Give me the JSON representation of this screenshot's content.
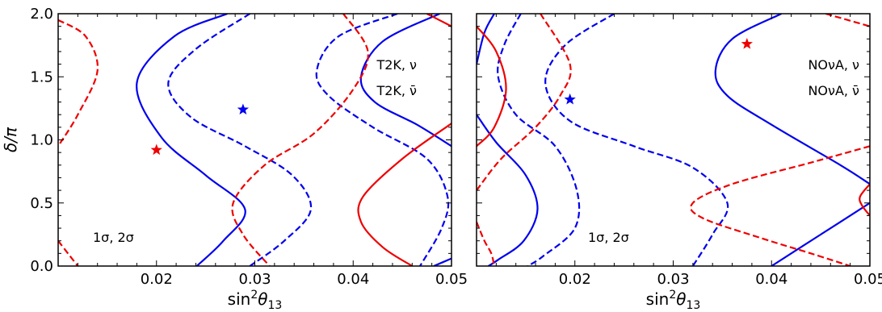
{
  "chart_data": [
    {
      "type": "line",
      "panel": "left",
      "xlabel_base": "sin",
      "xlabel_sup": "2",
      "xlabel_sym": "θ",
      "xlabel_sub": "13",
      "ylabel_sym": "δ/π",
      "xlim": [
        0.01,
        0.05
      ],
      "ylim": [
        0.0,
        2.0
      ],
      "xticks": [
        0.02,
        0.03,
        0.04,
        0.05
      ],
      "xtick_labels": [
        "0.02",
        "0.03",
        "0.04",
        "0.05"
      ],
      "yticks": [
        0.0,
        0.5,
        1.0,
        1.5,
        2.0
      ],
      "ytick_labels": [
        "0.0",
        "0.5",
        "1.0",
        "1.5",
        "2.0"
      ],
      "legend": [
        {
          "label": "T2K, ν",
          "color": "#0000ee"
        },
        {
          "label": "T2K, ν̄",
          "color": "#ee0000"
        }
      ],
      "note": "1σ, 2σ",
      "stars": [
        {
          "x": 0.0288,
          "y": 1.24,
          "color": "#0000ee"
        },
        {
          "x": 0.02,
          "y": 0.92,
          "color": "#ee0000"
        }
      ],
      "series": [
        {
          "color": "#0000ee",
          "dashed": false,
          "points": [
            [
              0.0272,
              2.0
            ],
            [
              0.0218,
              1.82
            ],
            [
              0.018,
              1.45
            ],
            [
              0.0205,
              1.02
            ],
            [
              0.025,
              0.72
            ],
            [
              0.029,
              0.45
            ],
            [
              0.0268,
              0.2
            ],
            [
              0.0241,
              0.0
            ]
          ]
        },
        {
          "color": "#0000ee",
          "dashed": true,
          "points": [
            [
              0.0295,
              2.0
            ],
            [
              0.024,
              1.72
            ],
            [
              0.0212,
              1.45
            ],
            [
              0.0235,
              1.18
            ],
            [
              0.029,
              0.95
            ],
            [
              0.0338,
              0.72
            ],
            [
              0.0357,
              0.45
            ],
            [
              0.033,
              0.2
            ],
            [
              0.0295,
              0.0
            ]
          ]
        },
        {
          "color": "#0000ee",
          "dashed": true,
          "points": [
            [
              0.0445,
              2.0
            ],
            [
              0.0385,
              1.82
            ],
            [
              0.0363,
              1.55
            ],
            [
              0.0375,
              1.35
            ],
            [
              0.042,
              1.1
            ],
            [
              0.0475,
              0.85
            ],
            [
              0.0496,
              0.55
            ],
            [
              0.049,
              0.3
            ],
            [
              0.0468,
              0.0
            ]
          ]
        },
        {
          "color": "#0000ee",
          "dashed": false,
          "points": [
            [
              0.0488,
              2.0
            ],
            [
              0.043,
              1.78
            ],
            [
              0.0408,
              1.5
            ],
            [
              0.0422,
              1.3
            ],
            [
              0.0465,
              1.12
            ],
            [
              0.05,
              0.95
            ]
          ]
        },
        {
          "color": "#0000ee",
          "dashed": false,
          "points": [
            [
              0.0482,
              0.0
            ],
            [
              0.05,
              0.06
            ]
          ]
        },
        {
          "color": "#ee0000",
          "dashed": true,
          "points": [
            [
              0.01,
              1.95
            ],
            [
              0.0128,
              1.82
            ],
            [
              0.014,
              1.55
            ],
            [
              0.012,
              1.2
            ],
            [
              0.01,
              0.95
            ]
          ]
        },
        {
          "color": "#ee0000",
          "dashed": true,
          "points": [
            [
              0.01,
              0.2
            ],
            [
              0.0112,
              0.08
            ],
            [
              0.012,
              0.0
            ]
          ]
        },
        {
          "color": "#ee0000",
          "dashed": true,
          "points": [
            [
              0.039,
              2.0
            ],
            [
              0.0415,
              1.7
            ],
            [
              0.04,
              1.4
            ],
            [
              0.036,
              1.05
            ],
            [
              0.031,
              0.8
            ],
            [
              0.0278,
              0.5
            ],
            [
              0.0288,
              0.25
            ],
            [
              0.0315,
              0.0
            ]
          ]
        },
        {
          "color": "#ee0000",
          "dashed": false,
          "points": [
            [
              0.05,
              1.13
            ],
            [
              0.045,
              0.85
            ],
            [
              0.041,
              0.55
            ],
            [
              0.0408,
              0.35
            ],
            [
              0.043,
              0.15
            ],
            [
              0.046,
              0.0
            ]
          ]
        },
        {
          "color": "#ee0000",
          "dashed": false,
          "points": [
            [
              0.0475,
              2.0
            ],
            [
              0.05,
              1.9
            ]
          ]
        }
      ]
    },
    {
      "type": "line",
      "panel": "right",
      "xlabel_base": "sin",
      "xlabel_sup": "2",
      "xlabel_sym": "θ",
      "xlabel_sub": "13",
      "xlim": [
        0.01,
        0.05
      ],
      "ylim": [
        0.0,
        2.0
      ],
      "xticks": [
        0.02,
        0.03,
        0.04,
        0.05
      ],
      "xtick_labels": [
        "0.02",
        "0.03",
        "0.04",
        "0.05"
      ],
      "legend": [
        {
          "label": "NOνA, ν",
          "color": "#0000ee"
        },
        {
          "label": "NOνA, ν̄",
          "color": "#ee0000"
        }
      ],
      "note": "1σ, 2σ",
      "stars": [
        {
          "x": 0.0195,
          "y": 1.32,
          "color": "#0000ee"
        },
        {
          "x": 0.0375,
          "y": 1.76,
          "color": "#ee0000"
        }
      ],
      "series": [
        {
          "color": "#0000ee",
          "dashed": false,
          "points": [
            [
              0.0118,
              2.0
            ],
            [
              0.0108,
              1.85
            ],
            [
              0.01,
              1.6
            ]
          ]
        },
        {
          "color": "#0000ee",
          "dashed": false,
          "points": [
            [
              0.01,
              1.2
            ],
            [
              0.012,
              0.98
            ],
            [
              0.015,
              0.72
            ],
            [
              0.0162,
              0.45
            ],
            [
              0.0148,
              0.2
            ],
            [
              0.0122,
              0.05
            ],
            [
              0.0112,
              0.0
            ]
          ]
        },
        {
          "color": "#0000ee",
          "dashed": true,
          "points": [
            [
              0.0145,
              2.0
            ],
            [
              0.0128,
              1.75
            ],
            [
              0.0122,
              1.5
            ],
            [
              0.014,
              1.2
            ],
            [
              0.018,
              0.95
            ],
            [
              0.0202,
              0.6
            ],
            [
              0.02,
              0.3
            ],
            [
              0.0168,
              0.08
            ],
            [
              0.0152,
              0.0
            ]
          ]
        },
        {
          "color": "#0000ee",
          "dashed": true,
          "points": [
            [
              0.024,
              2.0
            ],
            [
              0.019,
              1.75
            ],
            [
              0.017,
              1.45
            ],
            [
              0.0195,
              1.15
            ],
            [
              0.026,
              0.95
            ],
            [
              0.032,
              0.78
            ],
            [
              0.0355,
              0.5
            ],
            [
              0.034,
              0.25
            ],
            [
              0.032,
              0.0
            ]
          ]
        },
        {
          "color": "#0000ee",
          "dashed": false,
          "points": [
            [
              0.041,
              2.0
            ],
            [
              0.036,
              1.8
            ],
            [
              0.0343,
              1.55
            ],
            [
              0.0355,
              1.35
            ],
            [
              0.04,
              1.12
            ],
            [
              0.047,
              0.8
            ],
            [
              0.05,
              0.65
            ]
          ]
        },
        {
          "color": "#0000ee",
          "dashed": false,
          "points": [
            [
              0.04,
              0.0
            ],
            [
              0.045,
              0.25
            ],
            [
              0.05,
              0.5
            ]
          ]
        },
        {
          "color": "#ee0000",
          "dashed": false,
          "points": [
            [
              0.01,
              1.9
            ],
            [
              0.012,
              1.7
            ],
            [
              0.013,
              1.4
            ],
            [
              0.0118,
              1.1
            ],
            [
              0.01,
              0.95
            ]
          ]
        },
        {
          "color": "#ee0000",
          "dashed": true,
          "points": [
            [
              0.0165,
              2.0
            ],
            [
              0.0195,
              1.6
            ],
            [
              0.0185,
              1.35
            ],
            [
              0.016,
              1.1
            ],
            [
              0.0125,
              0.85
            ],
            [
              0.01,
              0.6
            ]
          ]
        },
        {
          "color": "#ee0000",
          "dashed": true,
          "points": [
            [
              0.01,
              0.35
            ],
            [
              0.0108,
              0.2
            ],
            [
              0.0115,
              0.1
            ],
            [
              0.0118,
              0.0
            ]
          ]
        },
        {
          "color": "#ee0000",
          "dashed": true,
          "points": [
            [
              0.0455,
              2.0
            ],
            [
              0.05,
              1.9
            ]
          ]
        },
        {
          "color": "#ee0000",
          "dashed": true,
          "points": [
            [
              0.05,
              0.95
            ],
            [
              0.044,
              0.82
            ],
            [
              0.036,
              0.65
            ],
            [
              0.032,
              0.5
            ],
            [
              0.033,
              0.38
            ],
            [
              0.039,
              0.22
            ],
            [
              0.044,
              0.1
            ],
            [
              0.048,
              0.0
            ]
          ]
        },
        {
          "color": "#ee0000",
          "dashed": false,
          "points": [
            [
              0.05,
              0.65
            ],
            [
              0.049,
              0.55
            ],
            [
              0.0492,
              0.48
            ],
            [
              0.05,
              0.4
            ]
          ]
        }
      ]
    }
  ]
}
